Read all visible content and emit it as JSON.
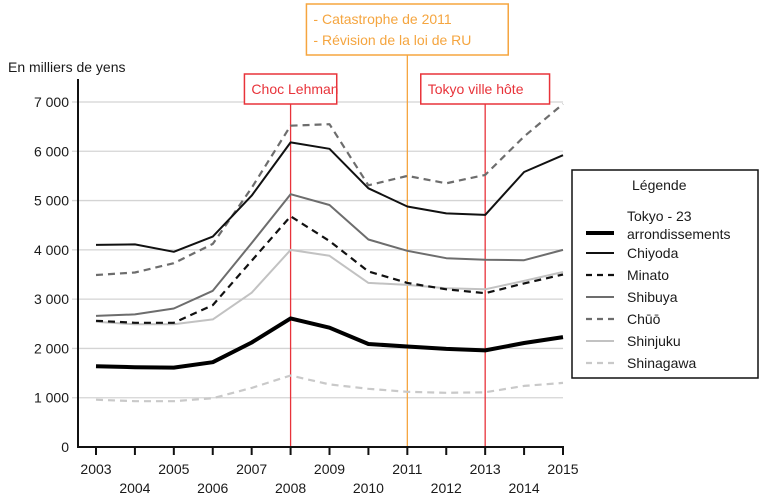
{
  "chart_data": {
    "type": "line",
    "title": "",
    "ylabel": "En milliers de yens",
    "xlabel": "",
    "ylim": [
      0,
      7000
    ],
    "xlim": [
      2003,
      2015
    ],
    "grid": true,
    "legend_position": "right",
    "y_ticks": [
      {
        "value": 0,
        "label": "0"
      },
      {
        "value": 1000,
        "label": "1 000"
      },
      {
        "value": 2000,
        "label": "2 000"
      },
      {
        "value": 3000,
        "label": "3 000"
      },
      {
        "value": 4000,
        "label": "4 000"
      },
      {
        "value": 5000,
        "label": "5 000"
      },
      {
        "value": 6000,
        "label": "6 000"
      },
      {
        "value": 7000,
        "label": "7 000"
      }
    ],
    "x": [
      2003,
      2004,
      2005,
      2006,
      2007,
      2008,
      2009,
      2010,
      2011,
      2012,
      2013,
      2014,
      2015
    ],
    "x_tick_labels": [
      "2003",
      "2004",
      "2005",
      "2006",
      "2007",
      "2008",
      "2009",
      "2010",
      "2011",
      "2012",
      "2013",
      "2014",
      "2015"
    ],
    "series": [
      {
        "name": "Tokyo - 23 arrondissements",
        "legend_lines": [
          "Tokyo - 23",
          "arrondissements"
        ],
        "style": "thick-solid",
        "color": "#000000",
        "values": [
          1640,
          1620,
          1610,
          1720,
          2120,
          2610,
          2420,
          2090,
          2040,
          1990,
          1960,
          2110,
          2230
        ]
      },
      {
        "name": "Chiyoda",
        "legend_lines": [
          "Chiyoda"
        ],
        "style": "solid",
        "color": "#111111",
        "values": [
          4100,
          4110,
          3960,
          4270,
          5100,
          6180,
          6050,
          5250,
          4880,
          4740,
          4710,
          5580,
          5920
        ]
      },
      {
        "name": "Minato",
        "legend_lines": [
          "Minato"
        ],
        "style": "dashed",
        "color": "#111111",
        "values": [
          2560,
          2520,
          2520,
          2880,
          3780,
          4680,
          4180,
          3560,
          3330,
          3200,
          3120,
          3320,
          3500
        ]
      },
      {
        "name": "Shibuya",
        "legend_lines": [
          "Shibuya"
        ],
        "style": "solid",
        "color": "#6d6d6d",
        "values": [
          2660,
          2690,
          2810,
          3170,
          4140,
          5130,
          4910,
          4210,
          3980,
          3830,
          3800,
          3790,
          4000
        ]
      },
      {
        "name": "Chūō",
        "legend_lines": [
          "Chūō"
        ],
        "style": "dashed",
        "color": "#6d6d6d",
        "values": [
          3490,
          3540,
          3730,
          4120,
          5260,
          6520,
          6550,
          5310,
          5500,
          5350,
          5520,
          6300,
          6960
        ]
      },
      {
        "name": "Shinjuku",
        "legend_lines": [
          "Shinjuku"
        ],
        "style": "solid",
        "color": "#c2c2c2",
        "values": [
          2540,
          2490,
          2490,
          2590,
          3130,
          4000,
          3880,
          3330,
          3290,
          3220,
          3200,
          3370,
          3550
        ]
      },
      {
        "name": "Shinagawa",
        "legend_lines": [
          "Shinagawa"
        ],
        "style": "dashed",
        "color": "#c9c9c9",
        "values": [
          960,
          930,
          930,
          990,
          1200,
          1450,
          1270,
          1180,
          1120,
          1100,
          1110,
          1240,
          1300
        ]
      }
    ],
    "legend_title": "Légende",
    "annotations": [
      {
        "x": 2008,
        "lines": [
          "Choc Lehman"
        ],
        "color": "#e8333a"
      },
      {
        "x": 2011,
        "lines": [
          "- Catastrophe de 2011",
          "- Révision de la loi de RU"
        ],
        "color": "#f5a53f"
      },
      {
        "x": 2013,
        "lines": [
          "Tokyo ville hôte"
        ],
        "color": "#e8333a"
      }
    ]
  }
}
